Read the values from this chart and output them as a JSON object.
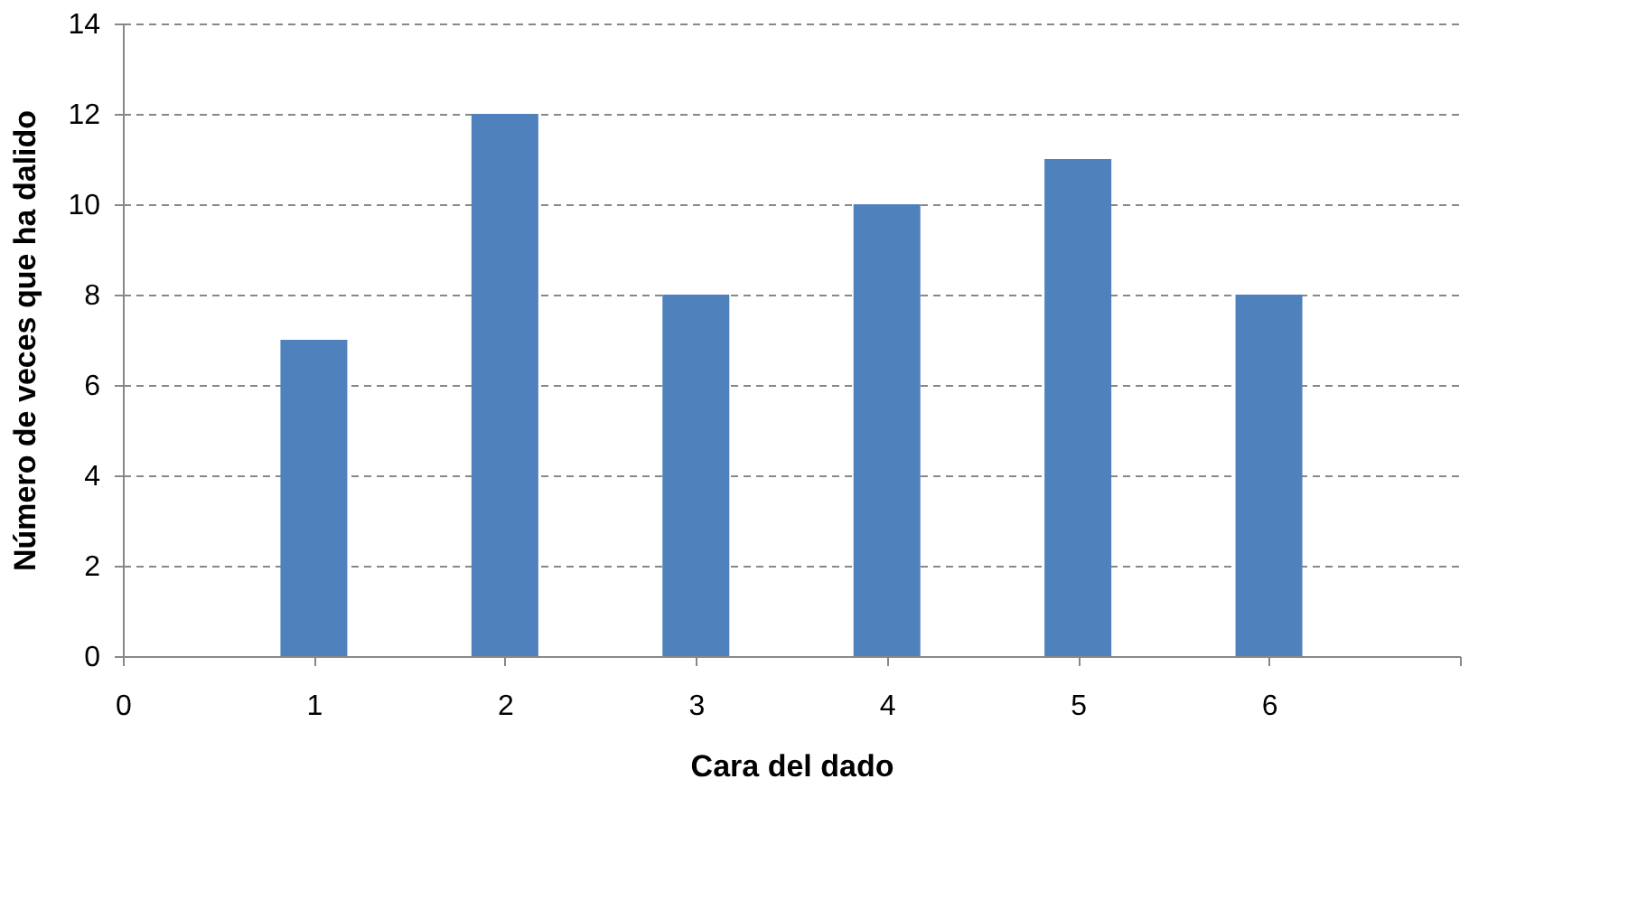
{
  "chart_data": {
    "type": "bar",
    "xlabel": "Cara del dado",
    "ylabel": "Número de veces que ha dalido",
    "x": [
      1,
      2,
      3,
      4,
      5,
      6
    ],
    "series": [
      {
        "color": "#4f81bd",
        "values": [
          7,
          12,
          8,
          10,
          11,
          8
        ]
      }
    ],
    "xlim": [
      0,
      7
    ],
    "xticks": [
      0,
      1,
      2,
      3,
      4,
      5,
      6,
      {
        "value": 7,
        "label": null
      }
    ],
    "ylim": [
      0,
      14
    ],
    "yticks": [
      0,
      2,
      4,
      6,
      8,
      10,
      12,
      14
    ],
    "grid": "y",
    "line_style": "dashed"
  }
}
